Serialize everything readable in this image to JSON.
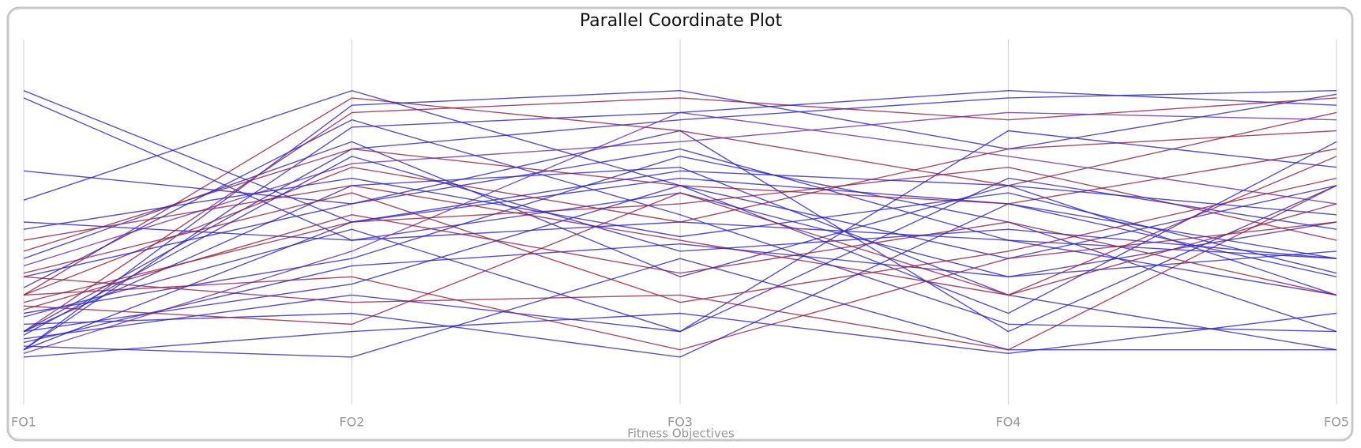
{
  "chart_data": {
    "type": "parallel",
    "title": "Parallel Coordinate Plot",
    "x_label": "Fitness Objectives",
    "categories": [
      "FO1",
      "FO2",
      "FO3",
      "FO4",
      "FO5"
    ],
    "ylim": [
      0,
      1
    ],
    "series": [
      {
        "color": "#2a22d2",
        "values": [
          0.86,
          0.5,
          0.62,
          0.55,
          0.4
        ]
      },
      {
        "color": "#2a22d2",
        "values": [
          0.84,
          0.45,
          0.58,
          0.35,
          0.5
        ]
      },
      {
        "color": "#2a22d2",
        "values": [
          0.64,
          0.55,
          0.7,
          0.45,
          0.3
        ]
      },
      {
        "color": "#2a22d2",
        "values": [
          0.56,
          0.86,
          0.6,
          0.4,
          0.6
        ]
      },
      {
        "color": "#9a1c3c",
        "values": [
          0.3,
          0.84,
          0.75,
          0.6,
          0.8
        ]
      },
      {
        "color": "#2a22d2",
        "values": [
          0.15,
          0.82,
          0.86,
          0.7,
          0.85
        ]
      },
      {
        "color": "#9a1c3c",
        "values": [
          0.2,
          0.8,
          0.84,
          0.78,
          0.84
        ]
      },
      {
        "color": "#2a22d2",
        "values": [
          0.15,
          0.76,
          0.8,
          0.86,
          0.82
        ]
      },
      {
        "color": "#2a22d2",
        "values": [
          0.2,
          0.7,
          0.78,
          0.84,
          0.86
        ]
      },
      {
        "color": "#9a1c3c",
        "values": [
          0.3,
          0.65,
          0.5,
          0.7,
          0.75
        ]
      },
      {
        "color": "#2a22d2",
        "values": [
          0.4,
          0.72,
          0.35,
          0.6,
          0.3
        ]
      },
      {
        "color": "#9a1c3c",
        "values": [
          0.45,
          0.6,
          0.45,
          0.3,
          0.55
        ]
      },
      {
        "color": "#2a22d2",
        "values": [
          0.35,
          0.55,
          0.75,
          0.2,
          0.6
        ]
      },
      {
        "color": "#2a22d2",
        "values": [
          0.25,
          0.4,
          0.68,
          0.5,
          0.2
        ]
      },
      {
        "color": "#9a1c3c",
        "values": [
          0.28,
          0.5,
          0.55,
          0.65,
          0.45
        ]
      },
      {
        "color": "#2a22d2",
        "values": [
          0.18,
          0.3,
          0.2,
          0.75,
          0.65
        ]
      },
      {
        "color": "#2a22d2",
        "values": [
          0.22,
          0.25,
          0.13,
          0.55,
          0.35
        ]
      },
      {
        "color": "#9a1c3c",
        "values": [
          0.3,
          0.35,
          0.15,
          0.4,
          0.5
        ]
      },
      {
        "color": "#2a22d2",
        "values": [
          0.13,
          0.2,
          0.25,
          0.14,
          0.25
        ]
      },
      {
        "color": "#2a22d2",
        "values": [
          0.16,
          0.13,
          0.4,
          0.15,
          0.15
        ]
      },
      {
        "color": "#9a1c3c",
        "values": [
          0.35,
          0.28,
          0.3,
          0.15,
          0.6
        ]
      },
      {
        "color": "#2a22d2",
        "values": [
          0.5,
          0.45,
          0.5,
          0.45,
          0.4
        ]
      },
      {
        "color": "#2a22d2",
        "values": [
          0.2,
          0.6,
          0.65,
          0.3,
          0.15
        ]
      },
      {
        "color": "#9a1c3c",
        "values": [
          0.42,
          0.7,
          0.6,
          0.55,
          0.7
        ]
      },
      {
        "color": "#2a22d2",
        "values": [
          0.24,
          0.48,
          0.2,
          0.62,
          0.48
        ]
      },
      {
        "color": "#6a2cb4",
        "values": [
          0.38,
          0.66,
          0.72,
          0.8,
          0.78
        ]
      },
      {
        "color": "#2a22d2",
        "values": [
          0.17,
          0.38,
          0.44,
          0.35,
          0.42
        ]
      },
      {
        "color": "#9a1c3c",
        "values": [
          0.26,
          0.52,
          0.36,
          0.5,
          0.3
        ]
      },
      {
        "color": "#2a22d2",
        "values": [
          0.32,
          0.78,
          0.52,
          0.22,
          0.2
        ]
      },
      {
        "color": "#6a2cb4",
        "values": [
          0.14,
          0.42,
          0.8,
          0.68,
          0.55
        ]
      },
      {
        "color": "#2a22d2",
        "values": [
          0.2,
          0.33,
          0.6,
          0.25,
          0.72
        ]
      },
      {
        "color": "#9a1c3c",
        "values": [
          0.36,
          0.58,
          0.28,
          0.42,
          0.62
        ]
      },
      {
        "color": "#2a22d2",
        "values": [
          0.48,
          0.62,
          0.46,
          0.58,
          0.36
        ]
      },
      {
        "color": "#2a22d2",
        "values": [
          0.19,
          0.68,
          0.42,
          0.48,
          0.4
        ]
      },
      {
        "color": "#9a1c3c",
        "values": [
          0.27,
          0.22,
          0.58,
          0.3,
          0.68
        ]
      },
      {
        "color": "#2a22d2",
        "values": [
          0.15,
          0.5,
          0.64,
          0.6,
          0.52
        ]
      }
    ]
  }
}
